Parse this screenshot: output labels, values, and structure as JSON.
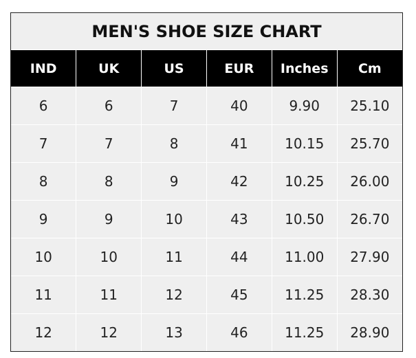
{
  "chart_data": {
    "type": "table",
    "title": "MEN'S SHOE SIZE CHART",
    "columns": [
      "IND",
      "UK",
      "US",
      "EUR",
      "Inches",
      "Cm"
    ],
    "rows": [
      [
        "6",
        "6",
        "7",
        "40",
        "9.90",
        "25.10"
      ],
      [
        "7",
        "7",
        "8",
        "41",
        "10.15",
        "25.70"
      ],
      [
        "8",
        "8",
        "9",
        "42",
        "10.25",
        "26.00"
      ],
      [
        "9",
        "9",
        "10",
        "43",
        "10.50",
        "26.70"
      ],
      [
        "10",
        "10",
        "11",
        "44",
        "11.00",
        "27.90"
      ],
      [
        "11",
        "11",
        "12",
        "45",
        "11.25",
        "28.30"
      ],
      [
        "12",
        "12",
        "13",
        "46",
        "11.25",
        "28.90"
      ]
    ]
  }
}
